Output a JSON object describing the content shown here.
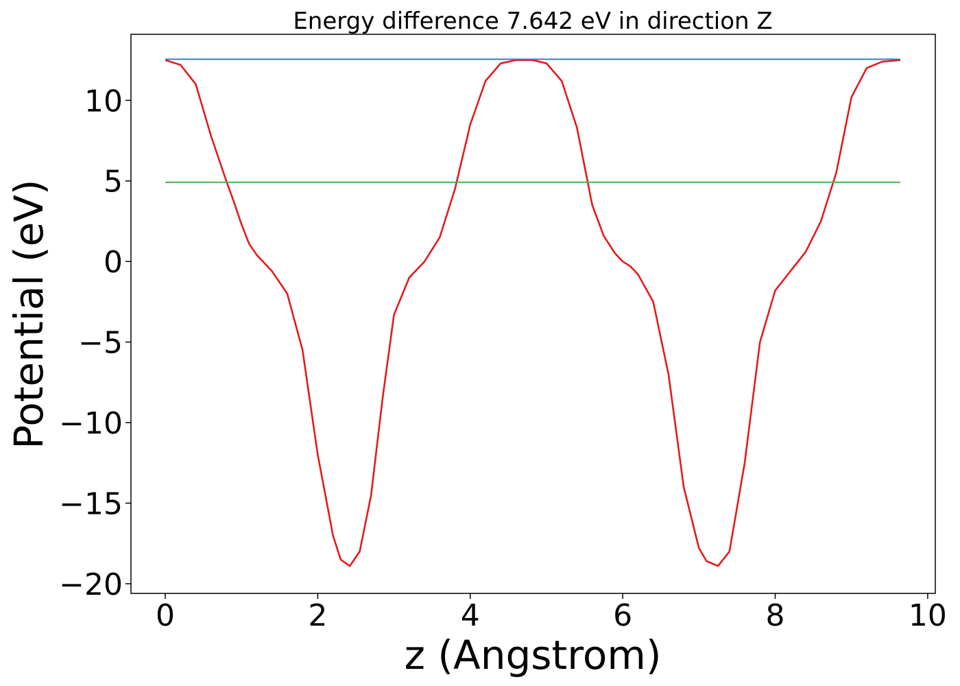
{
  "chart_data": {
    "type": "line",
    "title": "Energy difference 7.642 eV in direction Z",
    "xlabel": "z (Angstrom)",
    "ylabel": "Potential (eV)",
    "xlim": [
      -0.45,
      10.1
    ],
    "ylim": [
      -20.6,
      14.1
    ],
    "xticks": [
      0,
      2,
      4,
      6,
      8,
      10
    ],
    "xtick_labels": [
      "0",
      "2",
      "4",
      "6",
      "8",
      "10"
    ],
    "yticks": [
      -20,
      -15,
      -10,
      -5,
      0,
      5,
      10
    ],
    "ytick_labels": [
      "−20",
      "−15",
      "−10",
      "−5",
      "0",
      "5",
      "10"
    ],
    "grid": false,
    "series": [
      {
        "color": "#e41a1c",
        "x": [
          0,
          0.2,
          0.4,
          0.6,
          0.8,
          0.9,
          1.0,
          1.1,
          1.2,
          1.3,
          1.4,
          1.6,
          1.8,
          2.0,
          2.2,
          2.3,
          2.42,
          2.55,
          2.7,
          2.85,
          3.0,
          3.2,
          3.4,
          3.6,
          3.8,
          4.0,
          4.2,
          4.4,
          4.6,
          4.82,
          5.0,
          5.2,
          5.4,
          5.6,
          5.75,
          5.9,
          6.0,
          6.1,
          6.2,
          6.4,
          6.6,
          6.8,
          7.0,
          7.1,
          7.25,
          7.4,
          7.6,
          7.8,
          8.0,
          8.2,
          8.4,
          8.6,
          8.8,
          9.0,
          9.2,
          9.4,
          9.64
        ],
        "y": [
          12.5,
          12.2,
          11.0,
          7.8,
          5.0,
          3.7,
          2.3,
          1.1,
          0.4,
          -0.1,
          -0.6,
          -2.0,
          -5.5,
          -12.0,
          -17.0,
          -18.5,
          -18.9,
          -18.0,
          -14.5,
          -8.5,
          -3.3,
          -1.0,
          0.0,
          1.5,
          4.5,
          8.5,
          11.2,
          12.3,
          12.5,
          12.5,
          12.3,
          11.2,
          8.3,
          3.5,
          1.6,
          0.5,
          0.0,
          -0.3,
          -0.8,
          -2.5,
          -7.0,
          -14.0,
          -17.8,
          -18.6,
          -18.9,
          -18.0,
          -12.5,
          -5.0,
          -1.8,
          -0.6,
          0.6,
          2.5,
          5.5,
          10.2,
          12.0,
          12.4,
          12.5
        ]
      },
      {
        "color": "#377eb8",
        "x": [
          0,
          9.64
        ],
        "y": [
          12.55,
          12.55
        ]
      },
      {
        "color": "#4daf4a",
        "x": [
          0,
          9.64
        ],
        "y": [
          4.91,
          4.91
        ]
      }
    ]
  }
}
